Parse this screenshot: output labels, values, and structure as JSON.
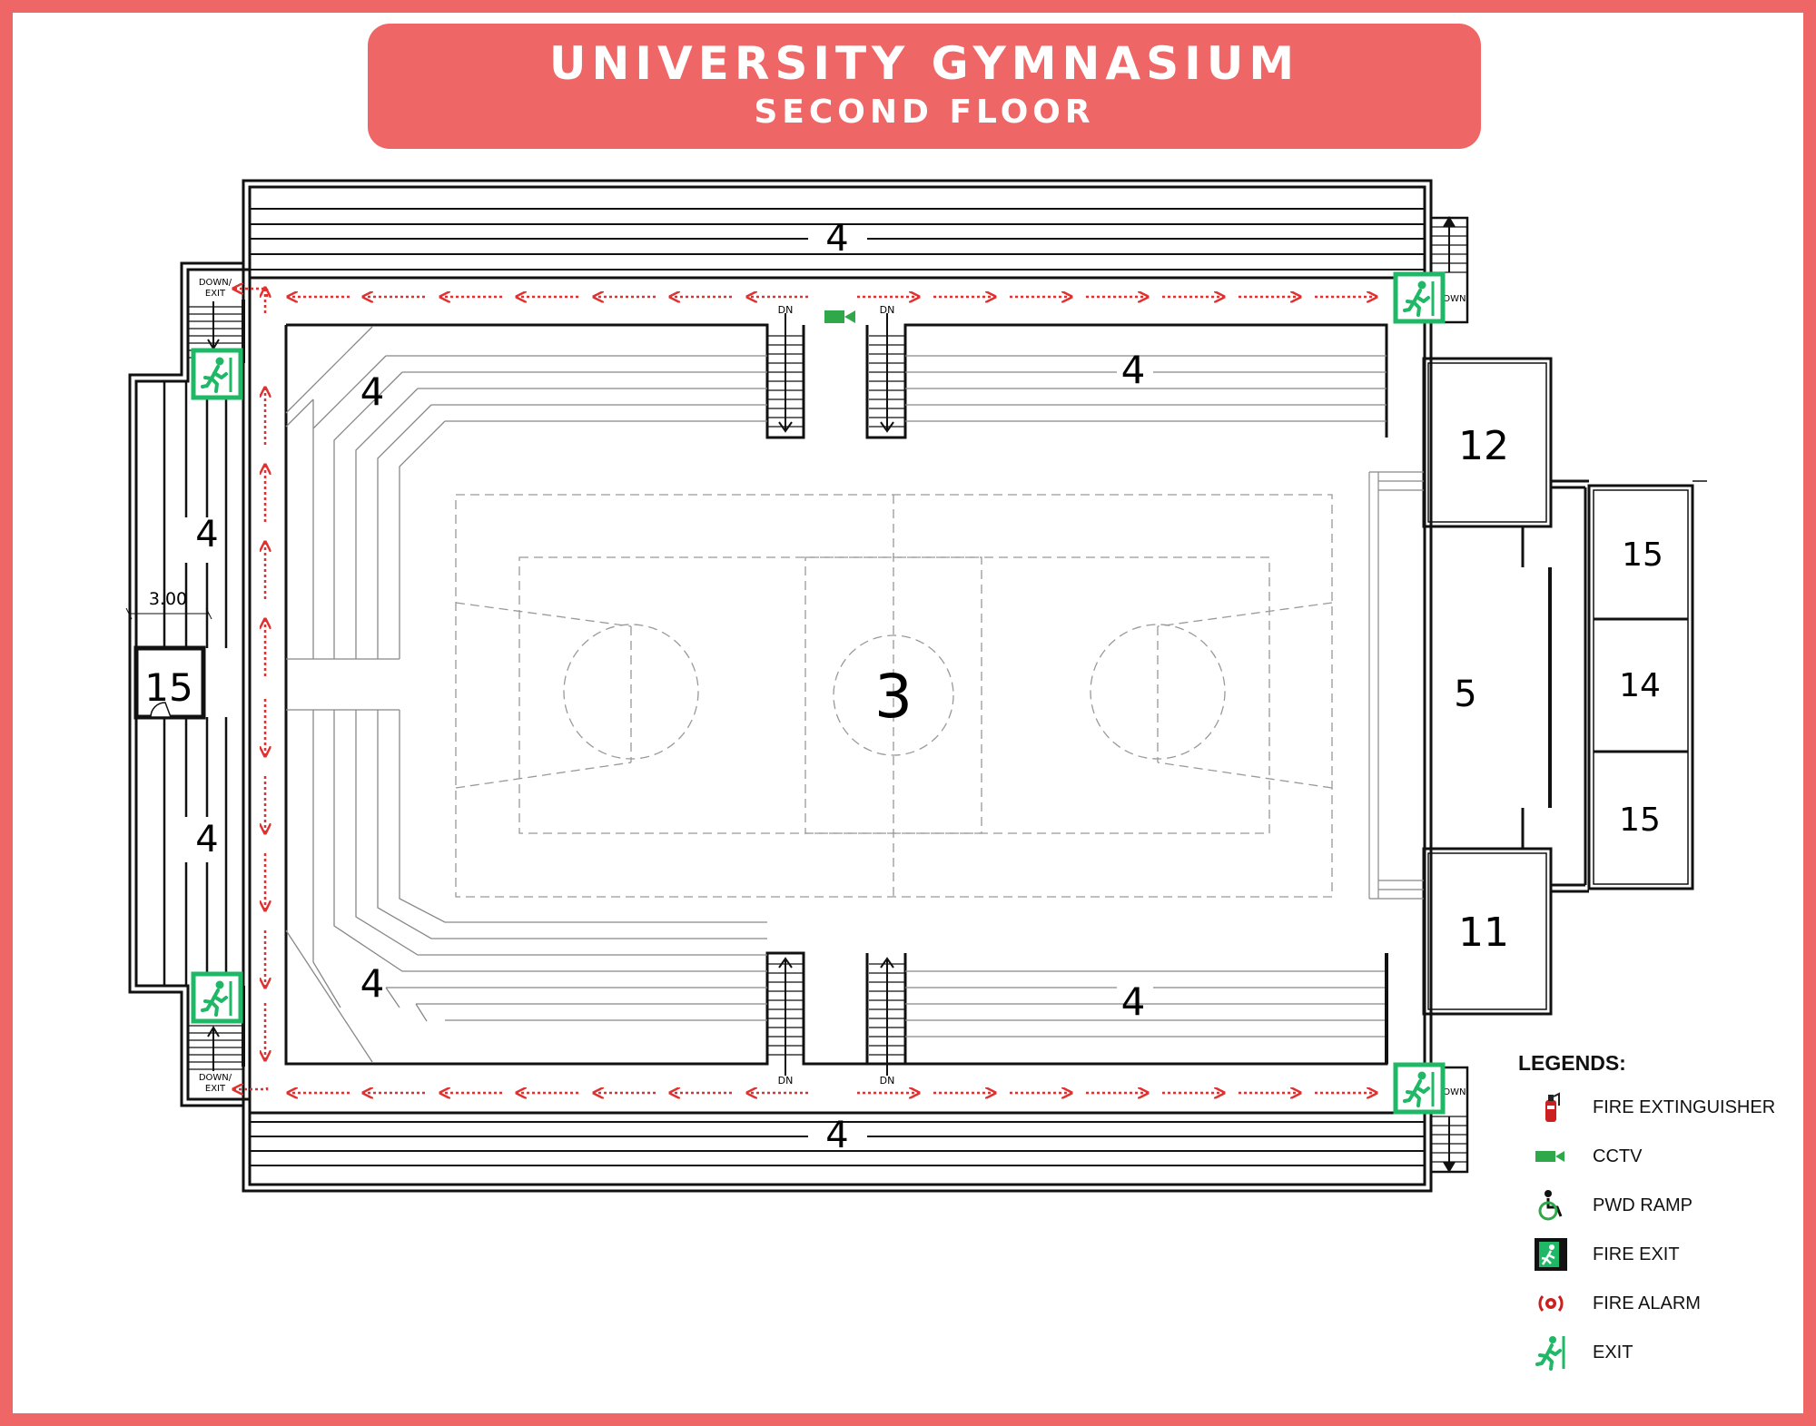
{
  "header": {
    "title": "UNIVERSITY GYMNASIUM",
    "subtitle": "SECOND FLOOR"
  },
  "rooms": {
    "top_bleacher": "4",
    "bottom_bleacher": "4",
    "upper_left_seating": "4",
    "upper_right_seating": "4",
    "lower_left_seating": "4",
    "lower_right_seating": "4",
    "left_upper_bleacher": "4",
    "left_lower_bleacher": "4",
    "court": "3",
    "lobby": "5",
    "room_upper": "12",
    "room_lower": "11",
    "right_room_top": "15",
    "right_room_middle": "14",
    "right_room_bottom": "15",
    "left_room": "15"
  },
  "dimension_label": "3.00",
  "stair_labels": {
    "down_exit": "DOWN/\nEXIT",
    "down_exit_top": "DOWN/",
    "down_exit_bottom": "EXIT",
    "dn": "DN",
    "down": "DOWN"
  },
  "legend": {
    "title": "LEGENDS:",
    "items": [
      {
        "icon": "fire-extinguisher-icon",
        "label": "FIRE EXTINGUISHER"
      },
      {
        "icon": "cctv-icon",
        "label": "CCTV"
      },
      {
        "icon": "pwd-ramp-icon",
        "label": "PWD RAMP"
      },
      {
        "icon": "fire-exit-icon",
        "label": "FIRE EXIT"
      },
      {
        "icon": "fire-alarm-icon",
        "label": "FIRE ALARM"
      },
      {
        "icon": "exit-icon",
        "label": "EXIT"
      }
    ]
  },
  "colors": {
    "frame": "#ef6666",
    "exit_green": "#1fb866",
    "route_red": "#e03030",
    "cctv_green": "#2fa84a"
  }
}
